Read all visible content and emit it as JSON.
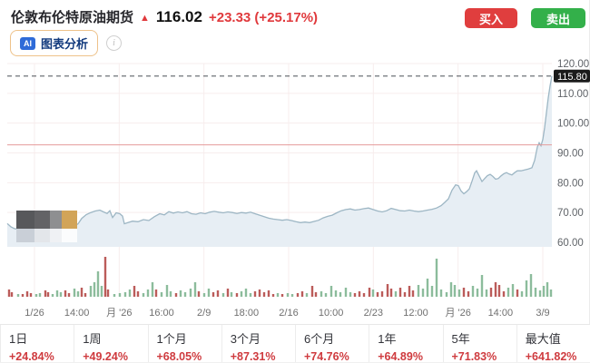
{
  "header": {
    "title": "伦敦布伦特原油期货",
    "arrow": "▲",
    "price": "116.02",
    "change": "+23.33 (+25.17%)",
    "buy_label": "买入",
    "sell_label": "卖出",
    "ai_badge": "AI",
    "ai_label": "图表分析",
    "info_icon": "i"
  },
  "colors": {
    "up_red": "#e0393c",
    "buy_button": "#e03e3e",
    "sell_button": "#33b04a",
    "line": "#9db6c4",
    "area_fill": "#e7eef4",
    "grid": "#f7eded",
    "prev_close_line": "#e59b9b",
    "dashed_line": "#5f6368",
    "volume_red": "#bb5c5a",
    "volume_green": "#8cbc9c",
    "badge_bg": "#1b1b1b",
    "axis_text": "#5f6368",
    "mosaic": [
      "#57585b",
      "#636366",
      "#8e8f91",
      "#d2a458",
      "#c9cfd7",
      "#e3e6ea",
      "#eff1f4",
      "#fbfcfd"
    ]
  },
  "chart_data": {
    "type": "area",
    "title": "伦敦布伦特原油期货 walk-forward price",
    "ylim": [
      60,
      120
    ],
    "y_ticks": [
      "120.00",
      "110.00",
      "100.00",
      "90.00",
      "80.00",
      "70.00",
      "60.00"
    ],
    "y_tick_values": [
      120,
      110,
      100,
      90,
      80,
      70,
      60
    ],
    "x_ticks": [
      "1/26",
      "14:00",
      "月 '26",
      "16:00",
      "2/9",
      "18:00",
      "2/16",
      "10:00",
      "2/23",
      "12:00",
      "月 '26",
      "14:00",
      "3/9"
    ],
    "grid_on_date_ticks": [
      0,
      2,
      4,
      6,
      8,
      10,
      12
    ],
    "current_price_label": "115.80",
    "current_price": 115.8,
    "prev_close": 92.69,
    "legend_position": "none",
    "series": [
      {
        "name": "price",
        "points": [
          [
            8,
            66.3
          ],
          [
            12,
            65.2
          ],
          [
            16,
            64.6
          ],
          [
            22,
            64.3
          ],
          [
            28,
            64.6
          ],
          [
            34,
            64.4
          ],
          [
            40,
            64.7
          ],
          [
            46,
            64.5
          ],
          [
            52,
            64.8
          ],
          [
            58,
            64.6
          ],
          [
            64,
            64.9
          ],
          [
            70,
            64.7
          ],
          [
            76,
            65.0
          ],
          [
            82,
            65.4
          ],
          [
            86,
            66.2
          ],
          [
            90,
            68.0
          ],
          [
            95,
            69.3
          ],
          [
            100,
            70.0
          ],
          [
            105,
            70.5
          ],
          [
            110,
            70.8
          ],
          [
            114,
            70.2
          ],
          [
            118,
            69.7
          ],
          [
            121,
            70.6
          ],
          [
            124,
            68.3
          ],
          [
            128,
            69.9
          ],
          [
            132,
            69.6
          ],
          [
            135,
            68.8
          ],
          [
            137,
            66.2
          ],
          [
            141,
            66.6
          ],
          [
            146,
            67.1
          ],
          [
            152,
            66.9
          ],
          [
            158,
            67.6
          ],
          [
            164,
            67.3
          ],
          [
            170,
            68.6
          ],
          [
            176,
            69.6
          ],
          [
            181,
            69.2
          ],
          [
            186,
            70.3
          ],
          [
            191,
            69.8
          ],
          [
            196,
            70.2
          ],
          [
            201,
            69.9
          ],
          [
            206,
            70.3
          ],
          [
            211,
            69.6
          ],
          [
            216,
            69.4
          ],
          [
            221,
            69.9
          ],
          [
            226,
            69.6
          ],
          [
            231,
            70.1
          ],
          [
            236,
            70.4
          ],
          [
            241,
            70.1
          ],
          [
            246,
            69.9
          ],
          [
            251,
            70.2
          ],
          [
            256,
            70.0
          ],
          [
            261,
            69.7
          ],
          [
            266,
            70.0
          ],
          [
            271,
            69.8
          ],
          [
            276,
            70.1
          ],
          [
            281,
            69.6
          ],
          [
            286,
            69.1
          ],
          [
            291,
            68.6
          ],
          [
            296,
            68.1
          ],
          [
            301,
            67.8
          ],
          [
            306,
            67.6
          ],
          [
            311,
            67.4
          ],
          [
            316,
            67.6
          ],
          [
            321,
            67.3
          ],
          [
            326,
            66.9
          ],
          [
            331,
            66.6
          ],
          [
            336,
            66.8
          ],
          [
            341,
            66.6
          ],
          [
            346,
            67.0
          ],
          [
            351,
            67.4
          ],
          [
            356,
            68.2
          ],
          [
            361,
            68.7
          ],
          [
            366,
            69.1
          ],
          [
            371,
            69.9
          ],
          [
            376,
            70.6
          ],
          [
            381,
            71.0
          ],
          [
            386,
            71.2
          ],
          [
            391,
            70.8
          ],
          [
            396,
            71.0
          ],
          [
            401,
            71.3
          ],
          [
            406,
            71.5
          ],
          [
            411,
            71.0
          ],
          [
            416,
            70.5
          ],
          [
            421,
            70.2
          ],
          [
            426,
            70.6
          ],
          [
            431,
            71.4
          ],
          [
            436,
            71.0
          ],
          [
            441,
            70.6
          ],
          [
            446,
            70.5
          ],
          [
            451,
            70.8
          ],
          [
            456,
            70.5
          ],
          [
            461,
            70.3
          ],
          [
            466,
            70.5
          ],
          [
            471,
            70.8
          ],
          [
            476,
            71.1
          ],
          [
            481,
            71.5
          ],
          [
            486,
            72.3
          ],
          [
            490,
            73.4
          ],
          [
            494,
            74.6
          ],
          [
            498,
            77.5
          ],
          [
            502,
            79.3
          ],
          [
            505,
            79.0
          ],
          [
            508,
            77.2
          ],
          [
            511,
            76.3
          ],
          [
            514,
            77.0
          ],
          [
            517,
            77.9
          ],
          [
            520,
            80.5
          ],
          [
            523,
            83.3
          ],
          [
            525,
            84.0
          ],
          [
            528,
            82.2
          ],
          [
            531,
            80.4
          ],
          [
            534,
            81.4
          ],
          [
            537,
            82.4
          ],
          [
            540,
            82.8
          ],
          [
            543,
            82.1
          ],
          [
            546,
            81.2
          ],
          [
            549,
            81.4
          ],
          [
            552,
            82.3
          ],
          [
            555,
            83.0
          ],
          [
            558,
            83.4
          ],
          [
            561,
            82.9
          ],
          [
            564,
            82.6
          ],
          [
            567,
            83.4
          ],
          [
            570,
            84.0
          ],
          [
            574,
            84.0
          ],
          [
            578,
            84.3
          ],
          [
            582,
            84.6
          ],
          [
            586,
            85.0
          ],
          [
            589,
            87.5
          ],
          [
            592,
            92.0
          ],
          [
            594,
            93.4
          ],
          [
            596,
            92.4
          ],
          [
            598,
            94.5
          ],
          [
            600,
            98.5
          ],
          [
            602,
            103.5
          ],
          [
            604,
            108.5
          ],
          [
            606,
            112.5
          ],
          [
            608,
            115.8
          ]
        ]
      }
    ],
    "volume_bars": [
      [
        10,
        8,
        "r"
      ],
      [
        13,
        5,
        "r"
      ],
      [
        20,
        3,
        "g"
      ],
      [
        25,
        3,
        "r"
      ],
      [
        30,
        6,
        "r"
      ],
      [
        34,
        4,
        "r"
      ],
      [
        40,
        3,
        "g"
      ],
      [
        44,
        4,
        "g"
      ],
      [
        50,
        7,
        "r"
      ],
      [
        53,
        5,
        "r"
      ],
      [
        58,
        3,
        "g"
      ],
      [
        63,
        7,
        "g"
      ],
      [
        67,
        5,
        "g"
      ],
      [
        72,
        7,
        "r"
      ],
      [
        76,
        4,
        "r"
      ],
      [
        82,
        9,
        "g"
      ],
      [
        86,
        6,
        "g"
      ],
      [
        90,
        10,
        "r"
      ],
      [
        94,
        4,
        "r"
      ],
      [
        100,
        12,
        "g"
      ],
      [
        104,
        16,
        "g"
      ],
      [
        108,
        28,
        "g"
      ],
      [
        112,
        12,
        "g"
      ],
      [
        116,
        44,
        "r"
      ],
      [
        119,
        8,
        "r"
      ],
      [
        126,
        3,
        "g"
      ],
      [
        132,
        4,
        "g"
      ],
      [
        138,
        5,
        "g"
      ],
      [
        143,
        8,
        "g"
      ],
      [
        148,
        12,
        "r"
      ],
      [
        152,
        6,
        "r"
      ],
      [
        158,
        4,
        "g"
      ],
      [
        163,
        8,
        "g"
      ],
      [
        168,
        16,
        "g"
      ],
      [
        172,
        8,
        "r"
      ],
      [
        178,
        5,
        "g"
      ],
      [
        184,
        13,
        "g"
      ],
      [
        188,
        6,
        "g"
      ],
      [
        194,
        4,
        "r"
      ],
      [
        199,
        7,
        "g"
      ],
      [
        204,
        5,
        "g"
      ],
      [
        210,
        9,
        "g"
      ],
      [
        215,
        16,
        "g"
      ],
      [
        219,
        6,
        "r"
      ],
      [
        225,
        4,
        "g"
      ],
      [
        230,
        9,
        "g"
      ],
      [
        235,
        5,
        "r"
      ],
      [
        240,
        7,
        "r"
      ],
      [
        246,
        4,
        "g"
      ],
      [
        251,
        9,
        "r"
      ],
      [
        255,
        5,
        "g"
      ],
      [
        261,
        4,
        "r"
      ],
      [
        266,
        6,
        "g"
      ],
      [
        271,
        9,
        "g"
      ],
      [
        276,
        4,
        "g"
      ],
      [
        281,
        6,
        "r"
      ],
      [
        286,
        8,
        "r"
      ],
      [
        291,
        5,
        "r"
      ],
      [
        296,
        7,
        "r"
      ],
      [
        301,
        3,
        "r"
      ],
      [
        306,
        4,
        "g"
      ],
      [
        311,
        3,
        "r"
      ],
      [
        317,
        4,
        "g"
      ],
      [
        322,
        3,
        "g"
      ],
      [
        328,
        4,
        "r"
      ],
      [
        333,
        6,
        "r"
      ],
      [
        338,
        4,
        "g"
      ],
      [
        344,
        12,
        "r"
      ],
      [
        348,
        5,
        "r"
      ],
      [
        354,
        6,
        "g"
      ],
      [
        359,
        4,
        "g"
      ],
      [
        365,
        12,
        "g"
      ],
      [
        370,
        7,
        "g"
      ],
      [
        375,
        5,
        "g"
      ],
      [
        381,
        10,
        "g"
      ],
      [
        386,
        5,
        "g"
      ],
      [
        391,
        4,
        "r"
      ],
      [
        396,
        6,
        "r"
      ],
      [
        401,
        4,
        "r"
      ],
      [
        407,
        10,
        "r"
      ],
      [
        411,
        8,
        "g"
      ],
      [
        416,
        5,
        "r"
      ],
      [
        421,
        6,
        "r"
      ],
      [
        427,
        14,
        "r"
      ],
      [
        431,
        9,
        "r"
      ],
      [
        436,
        6,
        "g"
      ],
      [
        441,
        10,
        "r"
      ],
      [
        446,
        5,
        "r"
      ],
      [
        451,
        12,
        "r"
      ],
      [
        455,
        7,
        "r"
      ],
      [
        461,
        13,
        "g"
      ],
      [
        466,
        9,
        "g"
      ],
      [
        471,
        20,
        "g"
      ],
      [
        476,
        12,
        "g"
      ],
      [
        481,
        42,
        "g"
      ],
      [
        486,
        8,
        "g"
      ],
      [
        492,
        5,
        "g"
      ],
      [
        497,
        16,
        "g"
      ],
      [
        501,
        13,
        "g"
      ],
      [
        506,
        8,
        "g"
      ],
      [
        511,
        10,
        "r"
      ],
      [
        516,
        6,
        "r"
      ],
      [
        521,
        12,
        "g"
      ],
      [
        526,
        9,
        "g"
      ],
      [
        531,
        24,
        "g"
      ],
      [
        536,
        8,
        "g"
      ],
      [
        541,
        10,
        "r"
      ],
      [
        546,
        16,
        "r"
      ],
      [
        550,
        13,
        "r"
      ],
      [
        555,
        6,
        "r"
      ],
      [
        560,
        10,
        "g"
      ],
      [
        565,
        14,
        "g"
      ],
      [
        570,
        8,
        "r"
      ],
      [
        575,
        6,
        "g"
      ],
      [
        580,
        18,
        "g"
      ],
      [
        585,
        25,
        "g"
      ],
      [
        590,
        10,
        "g"
      ],
      [
        595,
        7,
        "g"
      ],
      [
        599,
        12,
        "g"
      ],
      [
        603,
        16,
        "g"
      ],
      [
        607,
        8,
        "g"
      ]
    ]
  },
  "periods": [
    {
      "label": "1日",
      "change": "+24.84%"
    },
    {
      "label": "1周",
      "change": "+49.24%"
    },
    {
      "label": "1个月",
      "change": "+68.05%"
    },
    {
      "label": "3个月",
      "change": "+87.31%"
    },
    {
      "label": "6个月",
      "change": "+74.76%"
    },
    {
      "label": "1年",
      "change": "+64.89%"
    },
    {
      "label": "5年",
      "change": "+71.83%"
    },
    {
      "label": "最大值",
      "change": "+641.82%"
    }
  ]
}
